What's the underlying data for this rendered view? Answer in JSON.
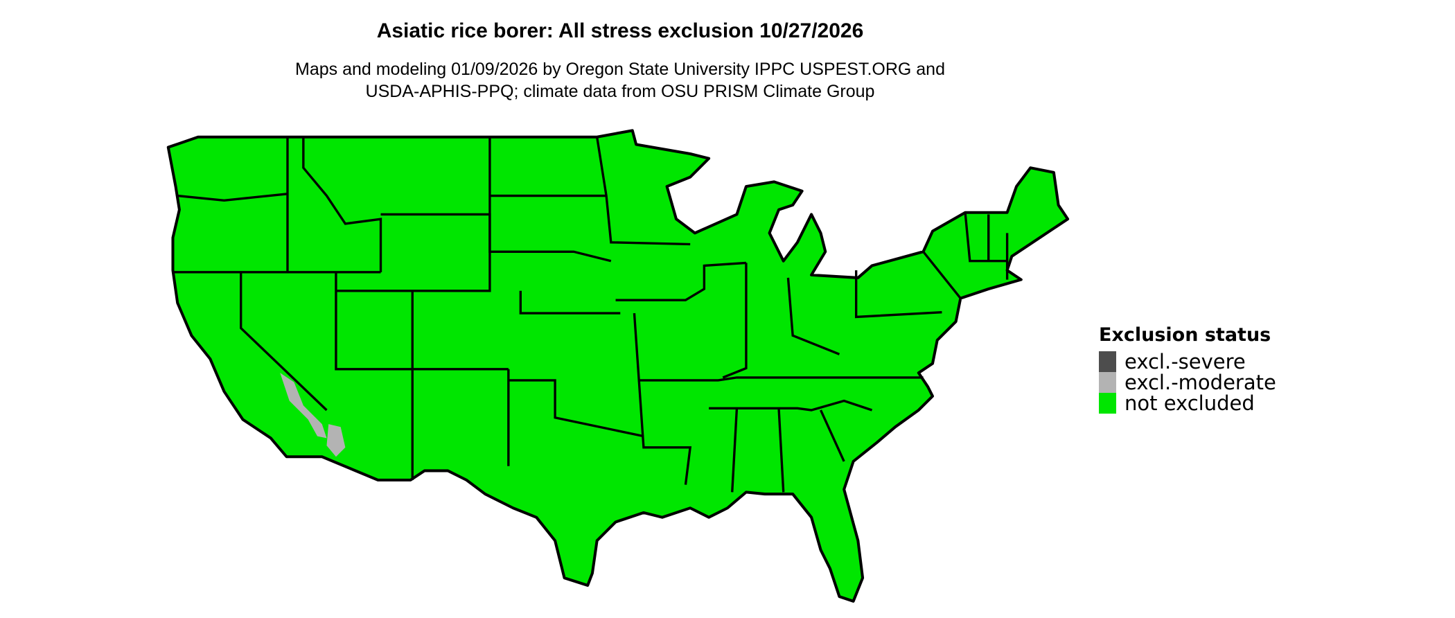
{
  "title": "Asiatic rice borer: All stress exclusion 10/27/2026",
  "subtitle_lines": [
    "Maps and modeling 01/09/2026 by Oregon State University IPPC USPEST.ORG and",
    "USDA-APHIS-PPQ; climate data from OSU PRISM Climate Group"
  ],
  "map": {
    "region": "Contiguous United States",
    "dominant_category": "not excluded",
    "moderate_areas": "southeastern California / western Arizona border (Colorado River)"
  },
  "legend": {
    "title": "Exclusion status",
    "items": [
      {
        "label": "excl.-severe",
        "color": "#4d4d4d"
      },
      {
        "label": "excl.-moderate",
        "color": "#b3b3b3"
      },
      {
        "label": "not excluded",
        "color": "#00e600"
      }
    ]
  }
}
